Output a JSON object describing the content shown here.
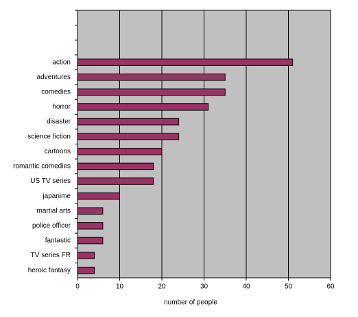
{
  "chart_data": {
    "type": "bar",
    "orientation": "horizontal",
    "x_label": "number of people",
    "categories": [
      null,
      null,
      null,
      "action",
      "adventures",
      "comedies",
      "horror",
      "disaster",
      "science fiction",
      "cartoons",
      "romantic comedies",
      "US TV series",
      "japanime",
      "martial arts",
      "police officer",
      "fantastic",
      "TV series FR",
      "heroic fantasy"
    ],
    "values": [
      null,
      null,
      null,
      51,
      35,
      35,
      31,
      24,
      24,
      20,
      18,
      18,
      10,
      6,
      6,
      6,
      4,
      4
    ],
    "color": "#993366",
    "xlim": [
      0,
      60
    ],
    "xticks": [
      0,
      10,
      20,
      30,
      40,
      50,
      60
    ],
    "grid": true
  }
}
